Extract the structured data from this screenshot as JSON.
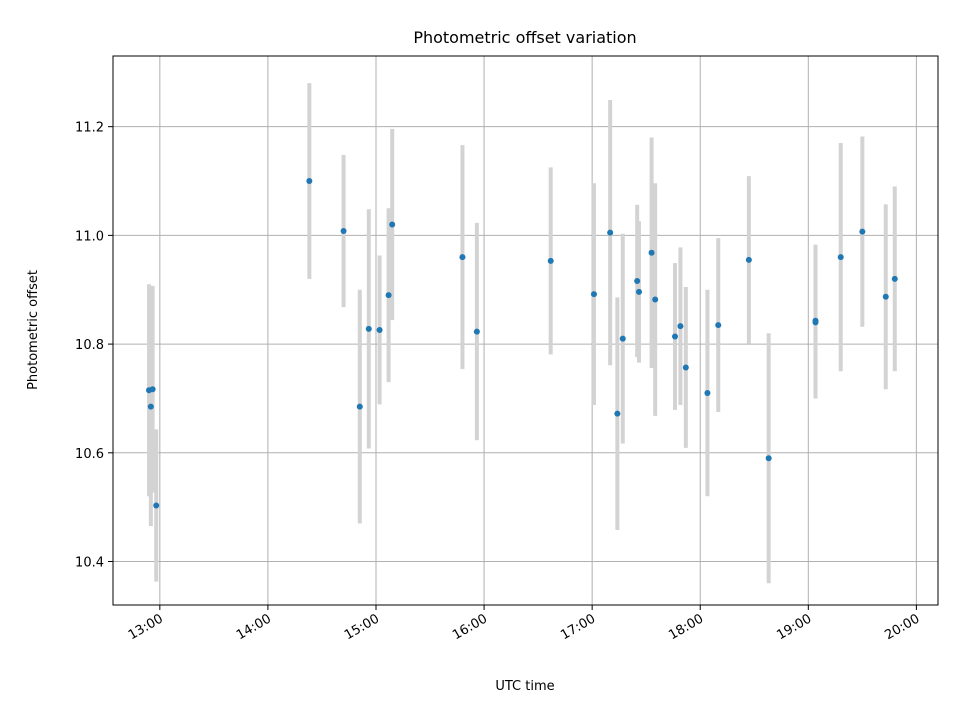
{
  "chart_data": {
    "type": "scatter",
    "title": "Photometric offset variation",
    "xlabel": "UTC time",
    "ylabel": "Photometric offset",
    "x_ticks": [
      "13:00",
      "14:00",
      "15:00",
      "16:00",
      "17:00",
      "18:00",
      "19:00",
      "20:00"
    ],
    "y_ticks": [
      "10.4",
      "10.6",
      "10.8",
      "11.0",
      "11.2"
    ],
    "xlim": [
      "12:34",
      "20:12"
    ],
    "ylim": [
      10.32,
      11.33
    ],
    "grid": true,
    "marker_color": "#1f77b4",
    "errorbar_color": "#d3d3d3",
    "points": [
      {
        "x": "12:54",
        "y": 10.715,
        "err": 0.195
      },
      {
        "x": "12:55",
        "y": 10.685,
        "err": 0.22
      },
      {
        "x": "12:56",
        "y": 10.717,
        "err": 0.19
      },
      {
        "x": "12:58",
        "y": 10.503,
        "err": 0.14
      },
      {
        "x": "14:23",
        "y": 11.1,
        "err": 0.18
      },
      {
        "x": "14:42",
        "y": 11.008,
        "err": 0.14
      },
      {
        "x": "14:51",
        "y": 10.685,
        "err": 0.215
      },
      {
        "x": "14:56",
        "y": 10.828,
        "err": 0.22
      },
      {
        "x": "15:02",
        "y": 10.826,
        "err": 0.137
      },
      {
        "x": "15:07",
        "y": 10.89,
        "err": 0.16
      },
      {
        "x": "15:09",
        "y": 11.02,
        "err": 0.176
      },
      {
        "x": "15:48",
        "y": 10.96,
        "err": 0.206
      },
      {
        "x": "15:56",
        "y": 10.823,
        "err": 0.2
      },
      {
        "x": "16:37",
        "y": 10.953,
        "err": 0.172
      },
      {
        "x": "17:01",
        "y": 10.892,
        "err": 0.204
      },
      {
        "x": "17:10",
        "y": 11.005,
        "err": 0.244
      },
      {
        "x": "17:14",
        "y": 10.672,
        "err": 0.214
      },
      {
        "x": "17:17",
        "y": 10.81,
        "err": 0.193
      },
      {
        "x": "17:25",
        "y": 10.916,
        "err": 0.14
      },
      {
        "x": "17:26",
        "y": 10.896,
        "err": 0.13
      },
      {
        "x": "17:33",
        "y": 10.968,
        "err": 0.212
      },
      {
        "x": "17:35",
        "y": 10.882,
        "err": 0.214
      },
      {
        "x": "17:46",
        "y": 10.814,
        "err": 0.135
      },
      {
        "x": "17:49",
        "y": 10.833,
        "err": 0.145
      },
      {
        "x": "17:52",
        "y": 10.757,
        "err": 0.148
      },
      {
        "x": "18:04",
        "y": 10.71,
        "err": 0.19
      },
      {
        "x": "18:10",
        "y": 10.835,
        "err": 0.16
      },
      {
        "x": "18:27",
        "y": 10.955,
        "err": 0.154
      },
      {
        "x": "18:38",
        "y": 10.59,
        "err": 0.23
      },
      {
        "x": "19:04",
        "y": 10.84,
        "err": 0.14
      },
      {
        "x": "19:04",
        "y": 10.843,
        "err": 0.14
      },
      {
        "x": "19:18",
        "y": 10.96,
        "err": 0.21
      },
      {
        "x": "19:30",
        "y": 11.007,
        "err": 0.175
      },
      {
        "x": "19:43",
        "y": 10.887,
        "err": 0.17
      },
      {
        "x": "19:48",
        "y": 10.92,
        "err": 0.17
      }
    ]
  }
}
